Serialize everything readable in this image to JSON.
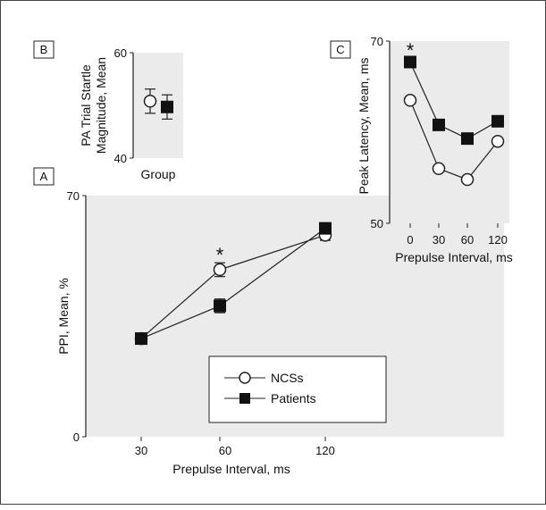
{
  "legend": {
    "entries": [
      {
        "label": "NCSs",
        "marker": "circle-open"
      },
      {
        "label": "Patients",
        "marker": "square-filled"
      }
    ]
  },
  "chart_data": [
    {
      "panel": "A",
      "type": "line",
      "x": [
        30,
        60,
        120
      ],
      "x_tick_labels": [
        "30",
        "60",
        "120"
      ],
      "xlabel": "Prepulse Interval, ms",
      "ylabel": "PPI, Mean, %",
      "ylim": [
        0,
        70
      ],
      "y_tick_labels": [
        "0",
        "70"
      ],
      "series": [
        {
          "name": "NCSs",
          "marker": "circle-open",
          "values": [
            28.5,
            48.5,
            58.5
          ],
          "error": [
            1.5,
            2,
            1.5
          ]
        },
        {
          "name": "Patients",
          "marker": "square-filled",
          "values": [
            28.5,
            38,
            60.5
          ],
          "error": [
            1.5,
            2,
            1.5
          ]
        }
      ],
      "annotations": [
        {
          "text": "*",
          "x": 60
        }
      ],
      "legend_position": "bottom-right",
      "grid": false,
      "background": "#ebebeb"
    },
    {
      "panel": "B",
      "type": "scatter",
      "categories": [
        "NCSs",
        "Patients"
      ],
      "xlabel": "Group",
      "ylabel": "PA Trial Startle Magnitude, Mean",
      "ylim": [
        40,
        60
      ],
      "y_tick_labels": [
        "40",
        "60"
      ],
      "series": [
        {
          "name": "NCSs",
          "marker": "circle-open",
          "values": [
            50.8
          ],
          "error": [
            2.3
          ]
        },
        {
          "name": "Patients",
          "marker": "square-filled",
          "values": [
            49.7
          ],
          "error": [
            2.3
          ]
        }
      ],
      "grid": false,
      "background": "#ebebeb"
    },
    {
      "panel": "C",
      "type": "line",
      "x": [
        0,
        30,
        60,
        120
      ],
      "x_tick_labels": [
        "0",
        "30",
        "60",
        "120"
      ],
      "xlabel": "Prepulse Interval, ms",
      "ylabel": "Peak Latency, Mean, ms",
      "ylim": [
        50,
        70
      ],
      "y_tick_labels": [
        "50",
        "70"
      ],
      "series": [
        {
          "name": "NCSs",
          "marker": "circle-open",
          "values": [
            63.5,
            56,
            54.8,
            59
          ]
        },
        {
          "name": "Patients",
          "marker": "square-filled",
          "values": [
            67.7,
            60.8,
            59.3,
            61.2
          ]
        }
      ],
      "annotations": [
        {
          "text": "*",
          "x": 0
        }
      ],
      "grid": false,
      "background": "#ebebeb"
    }
  ]
}
